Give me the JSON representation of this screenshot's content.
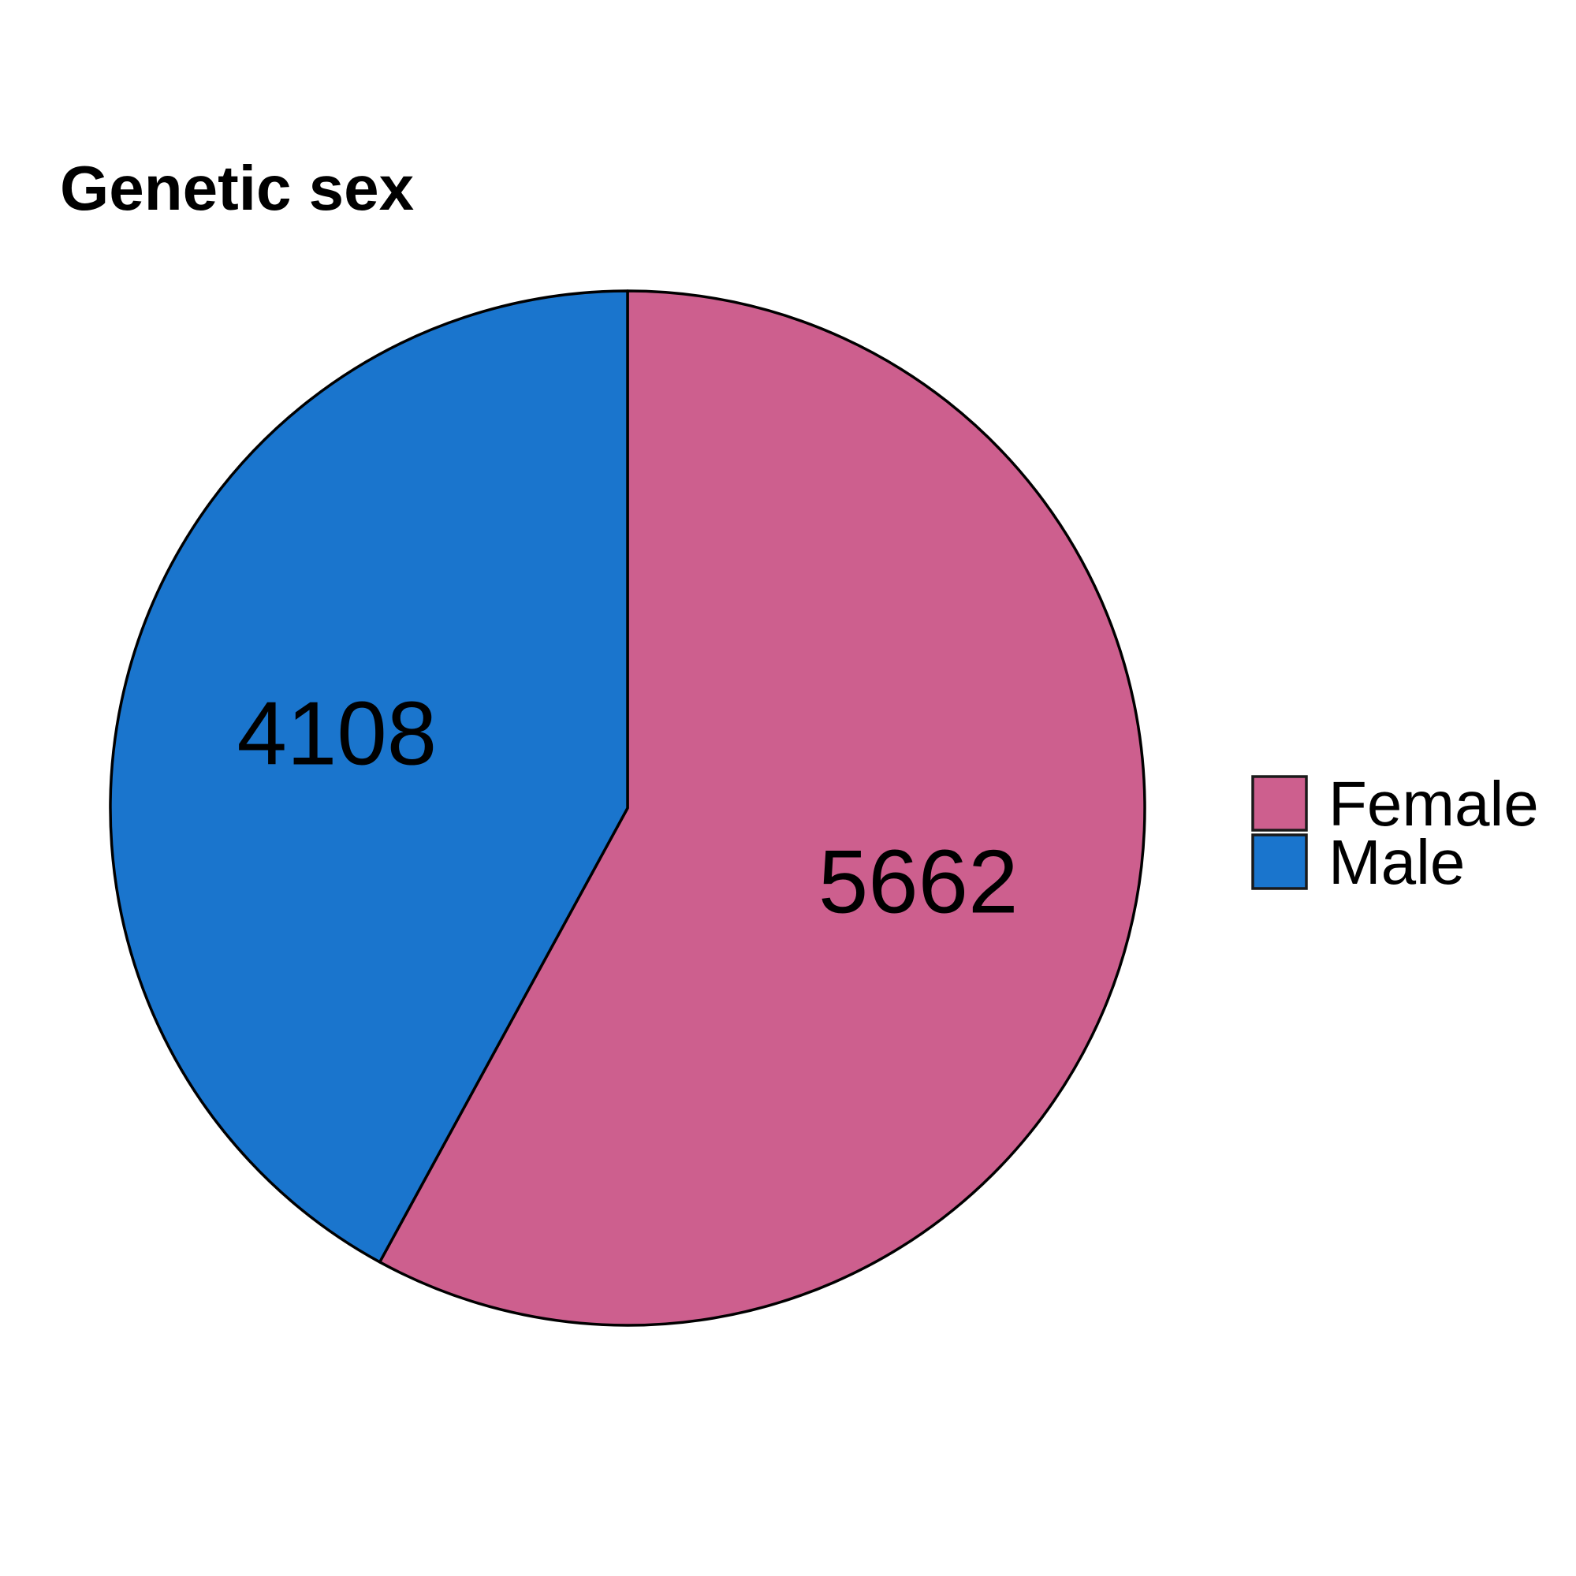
{
  "chart_data": {
    "type": "pie",
    "title": "Genetic sex",
    "slices": [
      {
        "label": "Female",
        "value": 5662,
        "color": "#CD5F8E"
      },
      {
        "label": "Male",
        "value": 4108,
        "color": "#1A75CD"
      }
    ],
    "start_angle_deg": 0,
    "direction": "clockwise",
    "outline_color": "#000000",
    "legend_position": "right"
  }
}
